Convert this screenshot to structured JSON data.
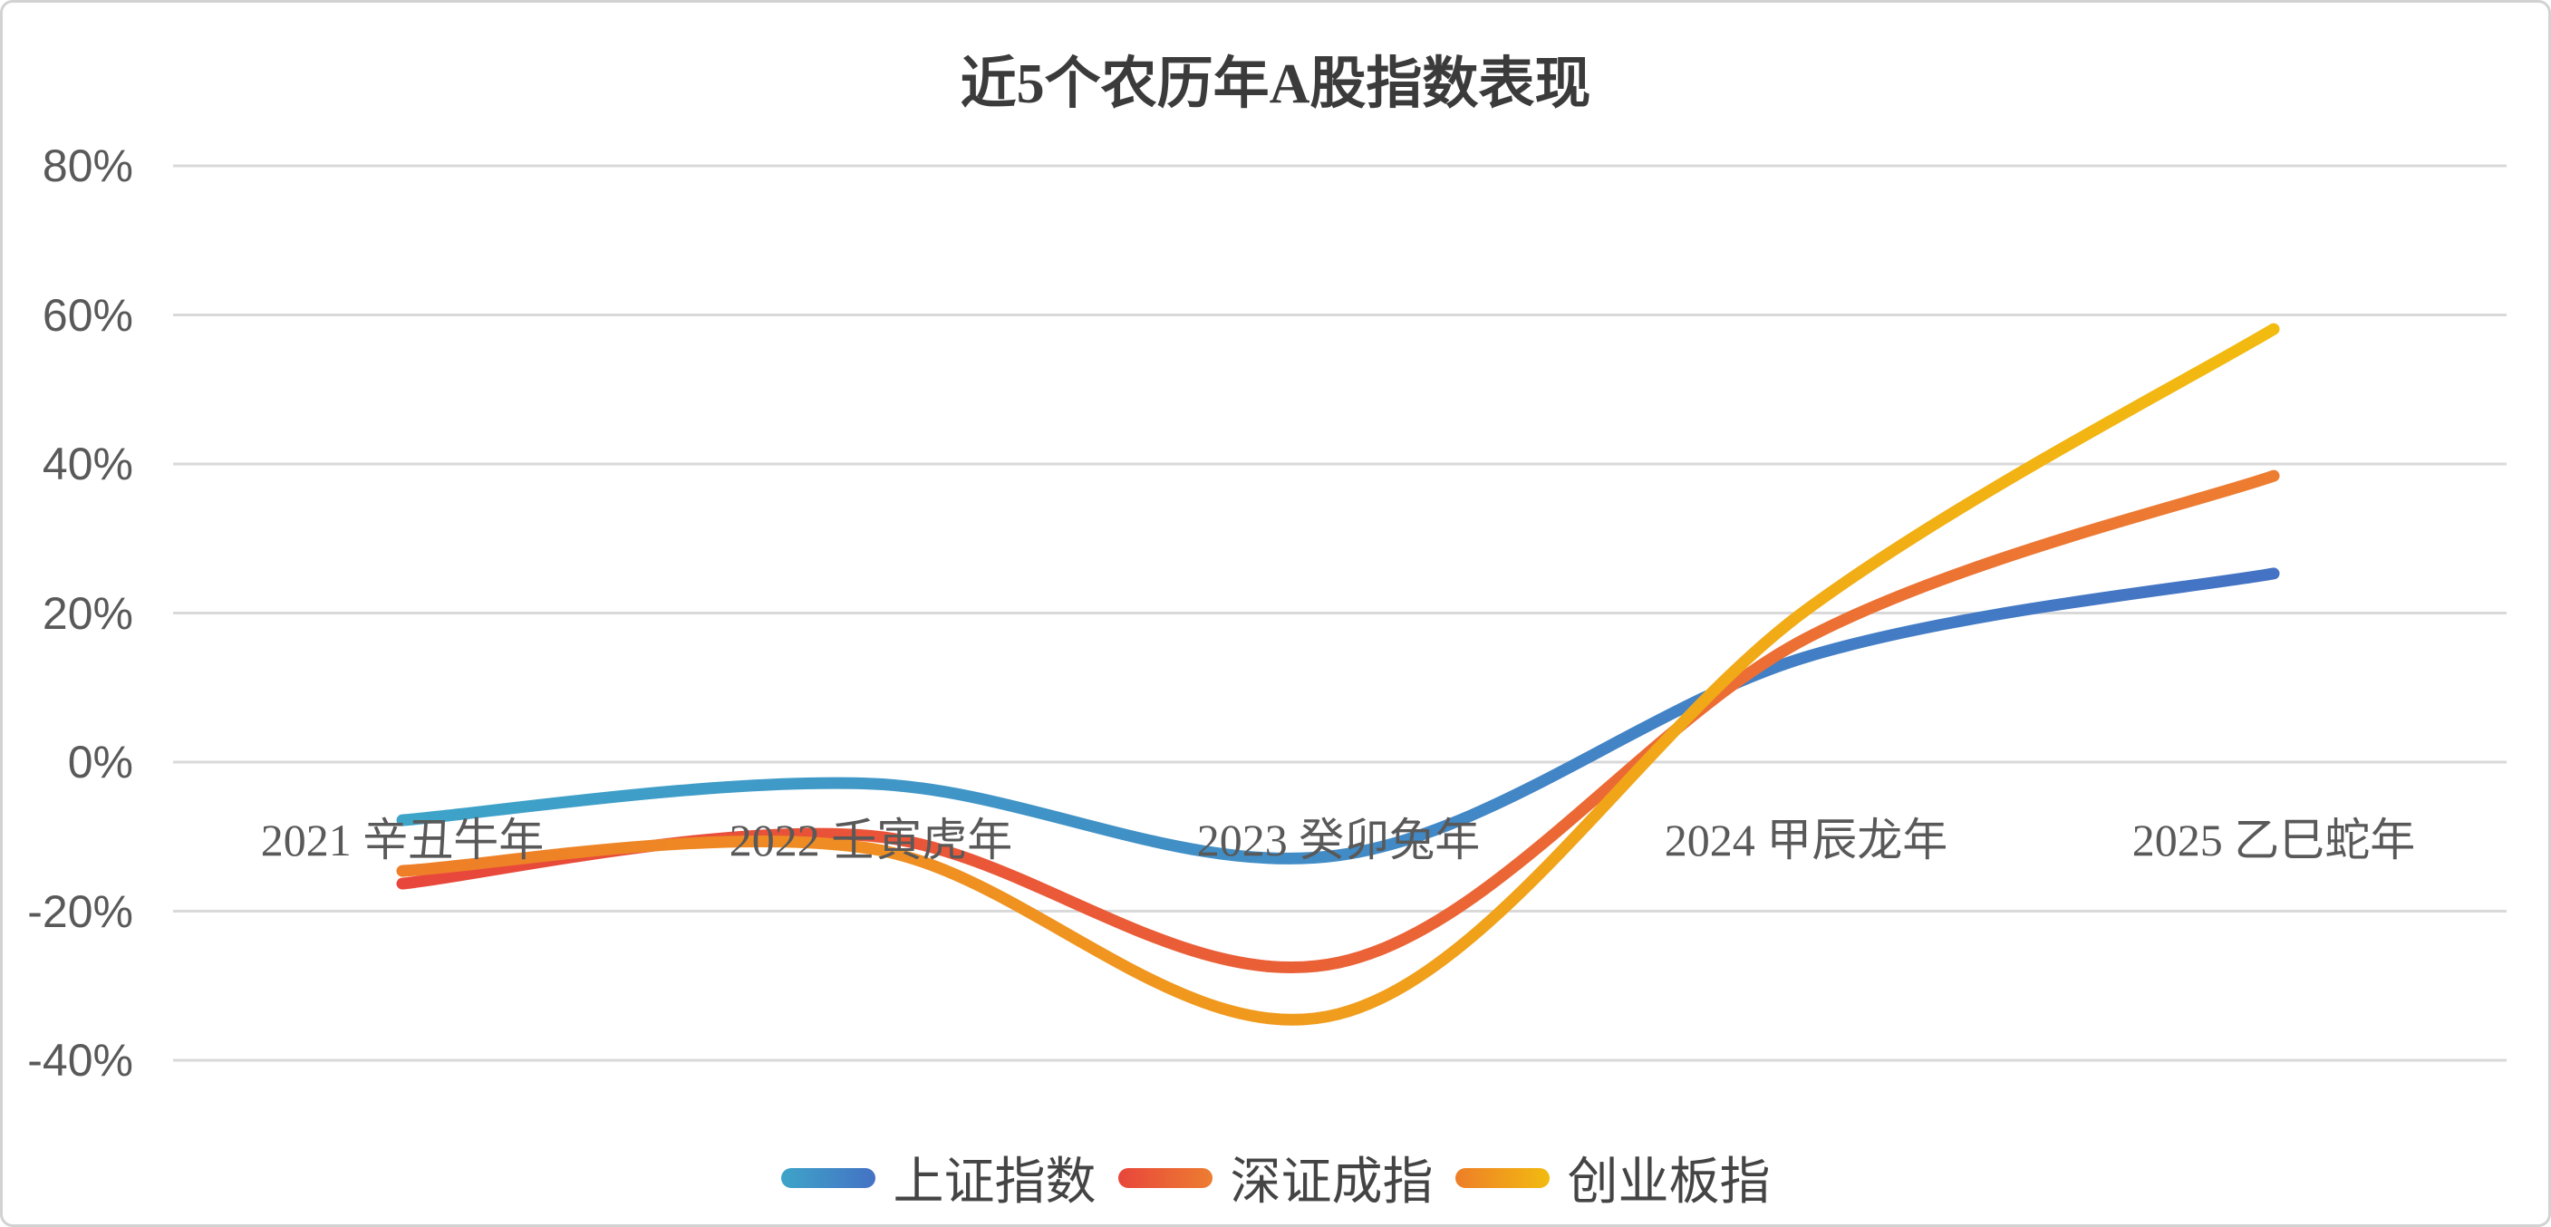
{
  "title": "近5个农历年A股指数表现",
  "chart_data": {
    "type": "line",
    "title": "近5个农历年A股指数表现",
    "smoothed": true,
    "grid": true,
    "legend_position": "bottom",
    "categories": [
      "2021 辛丑牛年",
      "2022 壬寅虎年",
      "2023 癸卯兔年",
      "2024 甲辰龙年",
      "2025 乙巳蛇年"
    ],
    "series": [
      {
        "id": "sse",
        "name": "上证指数",
        "values": [
          -7.8,
          -2.9,
          -12.5,
          14.1,
          25.3
        ],
        "color_start": "#3EA4C8",
        "color_end": "#4472C4"
      },
      {
        "id": "szse",
        "name": "深证成指",
        "values": [
          -16.3,
          -9.9,
          -26.9,
          16.6,
          38.4
        ],
        "color_start": "#E8463B",
        "color_end": "#ED7D31"
      },
      {
        "id": "chinext",
        "name": "创业板指",
        "values": [
          -14.6,
          -11.6,
          -33.8,
          20.4,
          58.1
        ],
        "color_start": "#EE7E28",
        "color_end": "#F2BB10"
      }
    ],
    "y_axis": {
      "min": -40,
      "max": 80,
      "step": 20,
      "tick_labels": [
        "80%",
        "60%",
        "40%",
        "20%",
        "0%",
        "-20%",
        "-40%"
      ],
      "unit": "%"
    },
    "colors": {
      "gridline": "#D9D9D9",
      "axis_text": "#595959",
      "title_text": "#3B3B3B",
      "legend_text": "#444444",
      "background": "#FFFFFF",
      "border": "#D2D2D2"
    }
  }
}
